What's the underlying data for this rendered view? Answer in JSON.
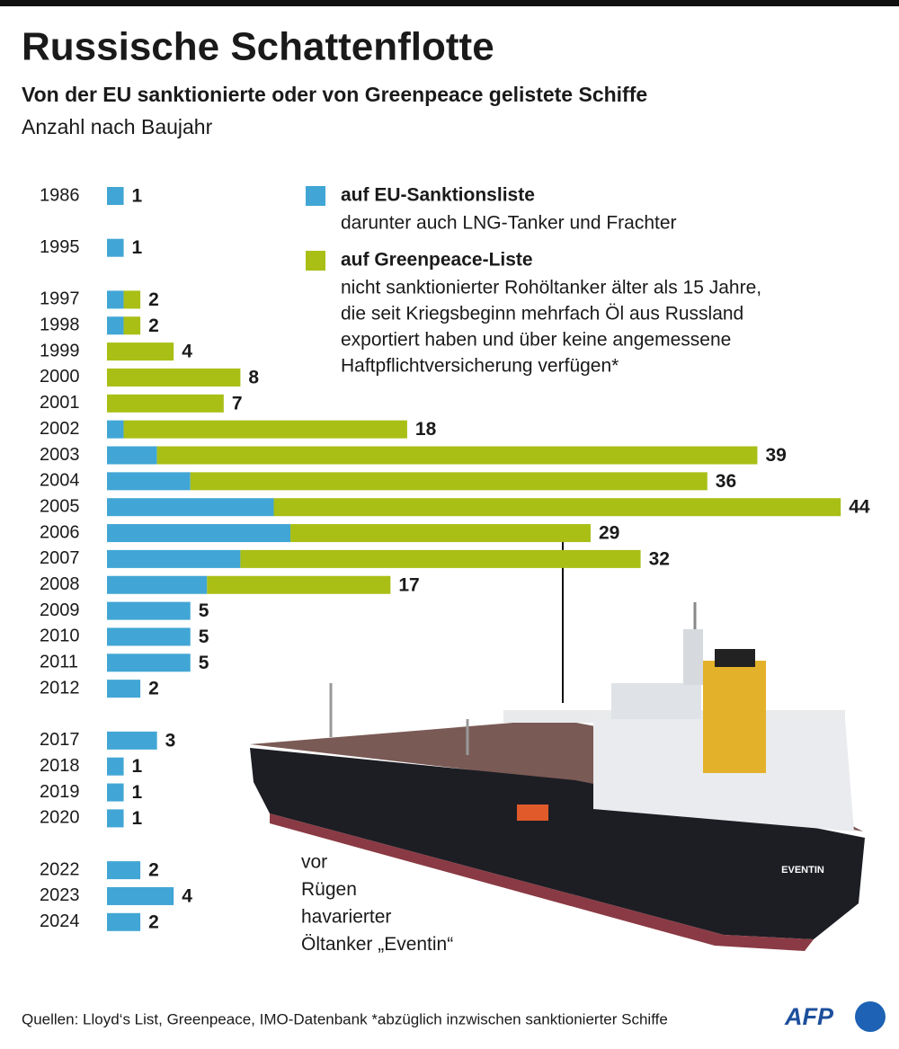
{
  "chart_data": {
    "type": "stacked-bar-horizontal",
    "title": "Russische Schattenflotte",
    "subtitle": "Von der EU sanktionierte oder von Greenpeace gelistete Schiffe",
    "unit_note": "Anzahl nach Baujahr",
    "categories": [
      "1986",
      "1995",
      "1997",
      "1998",
      "1999",
      "2000",
      "2001",
      "2002",
      "2003",
      "2004",
      "2005",
      "2006",
      "2007",
      "2008",
      "2009",
      "2010",
      "2011",
      "2012",
      "2017",
      "2018",
      "2019",
      "2020",
      "2022",
      "2023",
      "2024"
    ],
    "series": [
      {
        "name": "auf EU-Sanktionsliste",
        "description": [
          "darunter auch LNG-Tanker und Frachter"
        ],
        "color": "#41a6d5",
        "values": [
          1,
          1,
          1,
          1,
          0,
          0,
          0,
          1,
          3,
          5,
          10,
          11,
          8,
          6,
          5,
          5,
          5,
          2,
          3,
          1,
          1,
          1,
          2,
          4,
          2
        ]
      },
      {
        "name": "auf Greenpeace-Liste",
        "description": [
          "nicht sanktionierter Rohöltanker älter als 15 Jahre,",
          "die seit Kriegsbeginn mehrfach Öl aus Russland",
          "exportiert haben und über keine angemessene",
          "Haftpflichtversicherung verfügen*"
        ],
        "color": "#a9bf16",
        "values": [
          0,
          0,
          1,
          1,
          4,
          8,
          7,
          17,
          36,
          31,
          34,
          18,
          24,
          11,
          0,
          0,
          0,
          0,
          0,
          0,
          0,
          0,
          0,
          0,
          0
        ]
      }
    ],
    "totals": [
      1,
      1,
      2,
      2,
      4,
      8,
      7,
      18,
      39,
      36,
      44,
      29,
      32,
      17,
      5,
      5,
      5,
      2,
      3,
      1,
      1,
      1,
      2,
      4,
      2
    ],
    "annotation": [
      "vor",
      "Rügen",
      "havarierter",
      "Öltanker „Eventin“"
    ],
    "source": "Quellen: Lloyd‘s List, Greenpeace, IMO-Datenbank  *abzüglich inzwischen sanktionierter Schiffe",
    "logo": "AFP"
  }
}
